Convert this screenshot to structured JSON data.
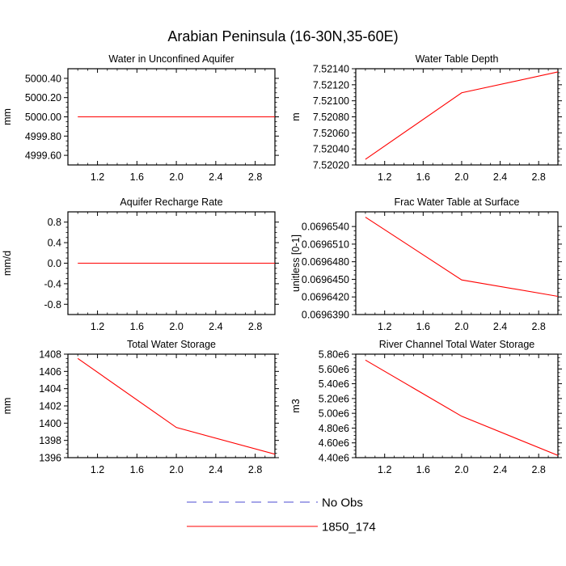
{
  "title": "Arabian Peninsula (16-30N,35-60E)",
  "colors": {
    "series": "#ff0000",
    "no_obs": "#4b4bd0",
    "axis": "#000000"
  },
  "legend": {
    "entries": [
      {
        "label": "No Obs",
        "style": "dashed",
        "color": "#4b4bd0"
      },
      {
        "label": "1850_174",
        "style": "solid",
        "color": "#ff0000"
      }
    ]
  },
  "chart_data": [
    {
      "type": "line",
      "title": "Water in Unconfined Aquifer",
      "ylabel": "mm",
      "xlim": [
        0.9,
        3.0
      ],
      "ylim": [
        4999.5,
        5000.5
      ],
      "xticks": [
        1.2,
        1.6,
        2.0,
        2.4,
        2.8
      ],
      "xtick_labels": [
        "1.2",
        "1.6",
        "2.0",
        "2.4",
        "2.8"
      ],
      "yticks": [
        4999.6,
        4999.8,
        5000.0,
        5000.2,
        5000.4
      ],
      "ytick_labels": [
        "4999.60",
        "4999.80",
        "5000.00",
        "5000.20",
        "5000.40"
      ],
      "series": [
        {
          "name": "1850_174",
          "x": [
            1.0,
            2.0,
            3.0
          ],
          "values": [
            5000.0,
            5000.0,
            5000.0
          ]
        }
      ]
    },
    {
      "type": "line",
      "title": "Water Table Depth",
      "ylabel": "m",
      "xlim": [
        0.9,
        3.0
      ],
      "ylim": [
        7.5202,
        7.5214
      ],
      "xticks": [
        1.2,
        1.6,
        2.0,
        2.4,
        2.8
      ],
      "xtick_labels": [
        "1.2",
        "1.6",
        "2.0",
        "2.4",
        "2.8"
      ],
      "yticks": [
        7.5202,
        7.5204,
        7.5206,
        7.5208,
        7.521,
        7.5212,
        7.5214
      ],
      "ytick_labels": [
        "7.52020",
        "7.52040",
        "7.52060",
        "7.52080",
        "7.52100",
        "7.52120",
        "7.52140"
      ],
      "series": [
        {
          "name": "1850_174",
          "x": [
            1.0,
            2.0,
            3.0
          ],
          "values": [
            7.52027,
            7.5211,
            7.52136
          ]
        }
      ]
    },
    {
      "type": "line",
      "title": "Aquifer Recharge Rate",
      "ylabel": "mm/d",
      "xlim": [
        0.9,
        3.0
      ],
      "ylim": [
        -1.0,
        1.0
      ],
      "xticks": [
        1.2,
        1.6,
        2.0,
        2.4,
        2.8
      ],
      "xtick_labels": [
        "1.2",
        "1.6",
        "2.0",
        "2.4",
        "2.8"
      ],
      "yticks": [
        -0.8,
        -0.4,
        0.0,
        0.4,
        0.8
      ],
      "ytick_labels": [
        "-0.8",
        "-0.4",
        "0.0",
        "0.4",
        "0.8"
      ],
      "series": [
        {
          "name": "1850_174",
          "x": [
            1.0,
            2.0,
            3.0
          ],
          "values": [
            0.0,
            0.0,
            0.0
          ]
        }
      ]
    },
    {
      "type": "line",
      "title": "Frac Water Table at Surface",
      "ylabel": "unitless [0-1]",
      "xlim": [
        0.9,
        3.0
      ],
      "ylim": [
        0.069639,
        0.0696565
      ],
      "xticks": [
        1.2,
        1.6,
        2.0,
        2.4,
        2.8
      ],
      "xtick_labels": [
        "1.2",
        "1.6",
        "2.0",
        "2.4",
        "2.8"
      ],
      "yticks": [
        0.069639,
        0.069642,
        0.069645,
        0.069648,
        0.069651,
        0.069654
      ],
      "ytick_labels": [
        "0.0696390",
        "0.0696420",
        "0.0696450",
        "0.0696480",
        "0.0696510",
        "0.0696540"
      ],
      "series": [
        {
          "name": "1850_174",
          "x": [
            1.0,
            2.0,
            3.0
          ],
          "values": [
            0.0696556,
            0.0696449,
            0.0696421
          ]
        }
      ]
    },
    {
      "type": "line",
      "title": "Total Water Storage",
      "ylabel": "mm",
      "xlim": [
        0.9,
        3.0
      ],
      "ylim": [
        1396,
        1408
      ],
      "xticks": [
        1.2,
        1.6,
        2.0,
        2.4,
        2.8
      ],
      "xtick_labels": [
        "1.2",
        "1.6",
        "2.0",
        "2.4",
        "2.8"
      ],
      "yticks": [
        1396,
        1398,
        1400,
        1402,
        1404,
        1406,
        1408
      ],
      "ytick_labels": [
        "1396",
        "1398",
        "1400",
        "1402",
        "1404",
        "1406",
        "1408"
      ],
      "series": [
        {
          "name": "1850_174",
          "x": [
            1.0,
            2.0,
            3.0
          ],
          "values": [
            1407.5,
            1399.5,
            1396.4
          ]
        }
      ]
    },
    {
      "type": "line",
      "title": "River Channel Total Water Storage",
      "ylabel": "m3",
      "xlim": [
        0.9,
        3.0
      ],
      "ylim": [
        4400000,
        5800000
      ],
      "xticks": [
        1.2,
        1.6,
        2.0,
        2.4,
        2.8
      ],
      "xtick_labels": [
        "1.2",
        "1.6",
        "2.0",
        "2.4",
        "2.8"
      ],
      "yticks": [
        4400000,
        4600000,
        4800000,
        5000000,
        5200000,
        5400000,
        5600000,
        5800000
      ],
      "ytick_labels": [
        "4.40e6",
        "4.60e6",
        "4.80e6",
        "5.00e6",
        "5.20e6",
        "5.40e6",
        "5.60e6",
        "5.80e6"
      ],
      "series": [
        {
          "name": "1850_174",
          "x": [
            1.0,
            2.0,
            3.0
          ],
          "values": [
            5720000,
            4960000,
            4430000
          ]
        }
      ]
    }
  ]
}
